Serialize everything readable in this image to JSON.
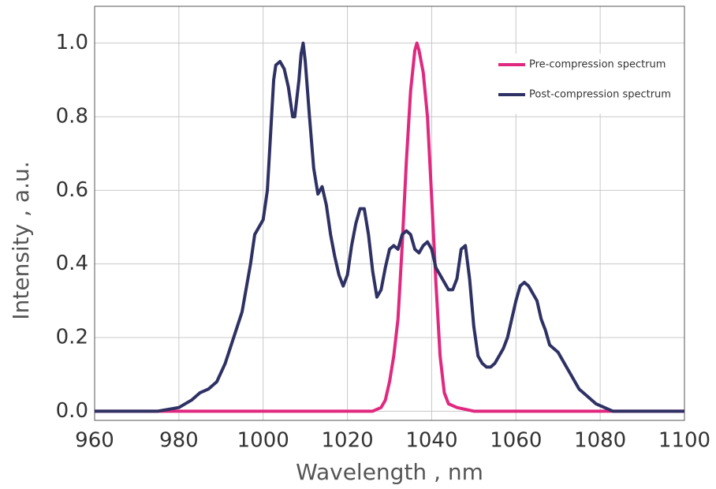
{
  "chart_data": {
    "type": "line",
    "xlabel": "Wavelength , nm",
    "ylabel": "Intensity , a.u.",
    "xlim": [
      960,
      1100
    ],
    "ylim": [
      -0.025,
      1.1
    ],
    "xticks": [
      960,
      980,
      1000,
      1020,
      1040,
      1060,
      1080,
      1100
    ],
    "yticks": [
      {
        "value": 0,
        "label": "0.0"
      },
      0.2,
      0.4,
      0.6,
      0.8,
      {
        "value": 1,
        "label": "1.0"
      }
    ],
    "grid": true,
    "legend": "upper right",
    "series": [
      {
        "name": "Pre-compression spectrum",
        "color": "#e0287f",
        "x": [
          960,
          1026,
          1028,
          1029,
          1030,
          1031,
          1032,
          1033,
          1034,
          1035,
          1036,
          1036.5,
          1037,
          1038,
          1039,
          1040,
          1041,
          1042,
          1043,
          1044,
          1046,
          1050,
          1100
        ],
        "values": [
          0,
          0,
          0.01,
          0.03,
          0.08,
          0.15,
          0.25,
          0.45,
          0.68,
          0.87,
          0.98,
          1.0,
          0.98,
          0.92,
          0.8,
          0.58,
          0.35,
          0.15,
          0.05,
          0.02,
          0.01,
          0,
          0
        ]
      },
      {
        "name": "Post-compression spectrum",
        "color": "#2e3163",
        "x": [
          960,
          975,
          980,
          983,
          985,
          987,
          989,
          991,
          993,
          995,
          997,
          998,
          999,
          1000,
          1001,
          1002,
          1002.5,
          1003,
          1004,
          1005,
          1006,
          1007,
          1007.5,
          1008.5,
          1009,
          1009.5,
          1010,
          1011,
          1012,
          1013,
          1014,
          1015,
          1016,
          1017,
          1018,
          1019,
          1020,
          1021,
          1022,
          1023,
          1024,
          1025,
          1026,
          1027,
          1028,
          1029,
          1030,
          1031,
          1032,
          1033,
          1034,
          1035,
          1036,
          1037,
          1038,
          1039,
          1040,
          1041,
          1042,
          1043,
          1044,
          1045,
          1046,
          1047,
          1048,
          1049,
          1050,
          1051,
          1052,
          1053,
          1054,
          1055,
          1056,
          1057,
          1058,
          1059,
          1060,
          1061,
          1062,
          1063,
          1064,
          1065,
          1066,
          1067,
          1068,
          1069,
          1070,
          1071,
          1072,
          1073,
          1074,
          1075,
          1077,
          1079,
          1081,
          1083,
          1100
        ],
        "values": [
          0,
          0,
          0.01,
          0.03,
          0.05,
          0.06,
          0.08,
          0.13,
          0.2,
          0.27,
          0.4,
          0.48,
          0.5,
          0.52,
          0.6,
          0.8,
          0.9,
          0.94,
          0.95,
          0.93,
          0.88,
          0.8,
          0.8,
          0.9,
          0.97,
          1.0,
          0.95,
          0.8,
          0.66,
          0.59,
          0.61,
          0.56,
          0.48,
          0.42,
          0.37,
          0.34,
          0.37,
          0.45,
          0.51,
          0.55,
          0.55,
          0.48,
          0.38,
          0.31,
          0.33,
          0.39,
          0.44,
          0.45,
          0.44,
          0.48,
          0.49,
          0.48,
          0.44,
          0.43,
          0.45,
          0.46,
          0.44,
          0.39,
          0.37,
          0.35,
          0.33,
          0.33,
          0.36,
          0.44,
          0.45,
          0.36,
          0.23,
          0.15,
          0.13,
          0.12,
          0.12,
          0.13,
          0.15,
          0.17,
          0.2,
          0.25,
          0.3,
          0.34,
          0.35,
          0.34,
          0.32,
          0.3,
          0.25,
          0.22,
          0.18,
          0.17,
          0.16,
          0.14,
          0.12,
          0.1,
          0.08,
          0.06,
          0.04,
          0.02,
          0.01,
          0,
          0
        ]
      }
    ]
  }
}
